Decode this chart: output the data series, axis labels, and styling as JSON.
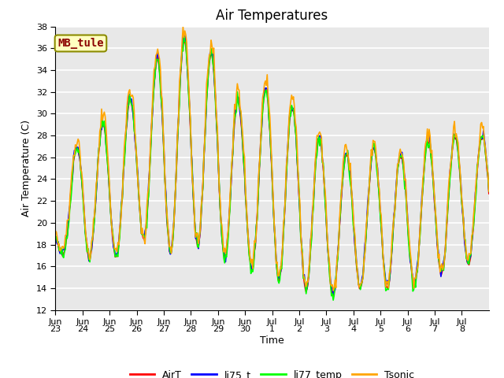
{
  "title": "Air Temperatures",
  "ylabel": "Air Temperature (C)",
  "xlabel": "Time",
  "ylim": [
    12,
    38
  ],
  "yticks": [
    12,
    14,
    16,
    18,
    20,
    22,
    24,
    26,
    28,
    30,
    32,
    34,
    36,
    38
  ],
  "plot_bg_color": "#e8e8e8",
  "grid_color": "#ffffff",
  "series": [
    "AirT",
    "li75_t",
    "li77_temp",
    "Tsonic"
  ],
  "colors": [
    "red",
    "blue",
    "lime",
    "orange"
  ],
  "linewidth": 1.2,
  "annotation_text": "MB_tule",
  "annotation_color": "#8b0000",
  "annotation_bg": "#ffffc0",
  "annotation_border": "#8b8b00",
  "title_fontsize": 12,
  "label_fontsize": 9,
  "tick_fontsize": 8,
  "legend_fontsize": 9,
  "xtick_labels": [
    "Jun\n23",
    "Jun\n24",
    "Jun\n25",
    "Jun\n26",
    "Jun\n27",
    "Jun\n28",
    "Jun\n29",
    "Jun\n30",
    "Jul\n1",
    "Jul\n2",
    "Jul\n3",
    "Jul\n4",
    "Jul\n5",
    "Jul\n6",
    "Jul\n7",
    "Jul\n8"
  ],
  "num_points": 480,
  "peak_vals": [
    20,
    29,
    29,
    32,
    36,
    37,
    35,
    30,
    33,
    30,
    27,
    26,
    27,
    26,
    28,
    28
  ],
  "valley_vals": [
    17,
    17,
    16,
    19,
    17,
    18,
    17,
    16,
    15,
    14,
    13,
    14,
    14,
    14,
    15,
    16
  ]
}
